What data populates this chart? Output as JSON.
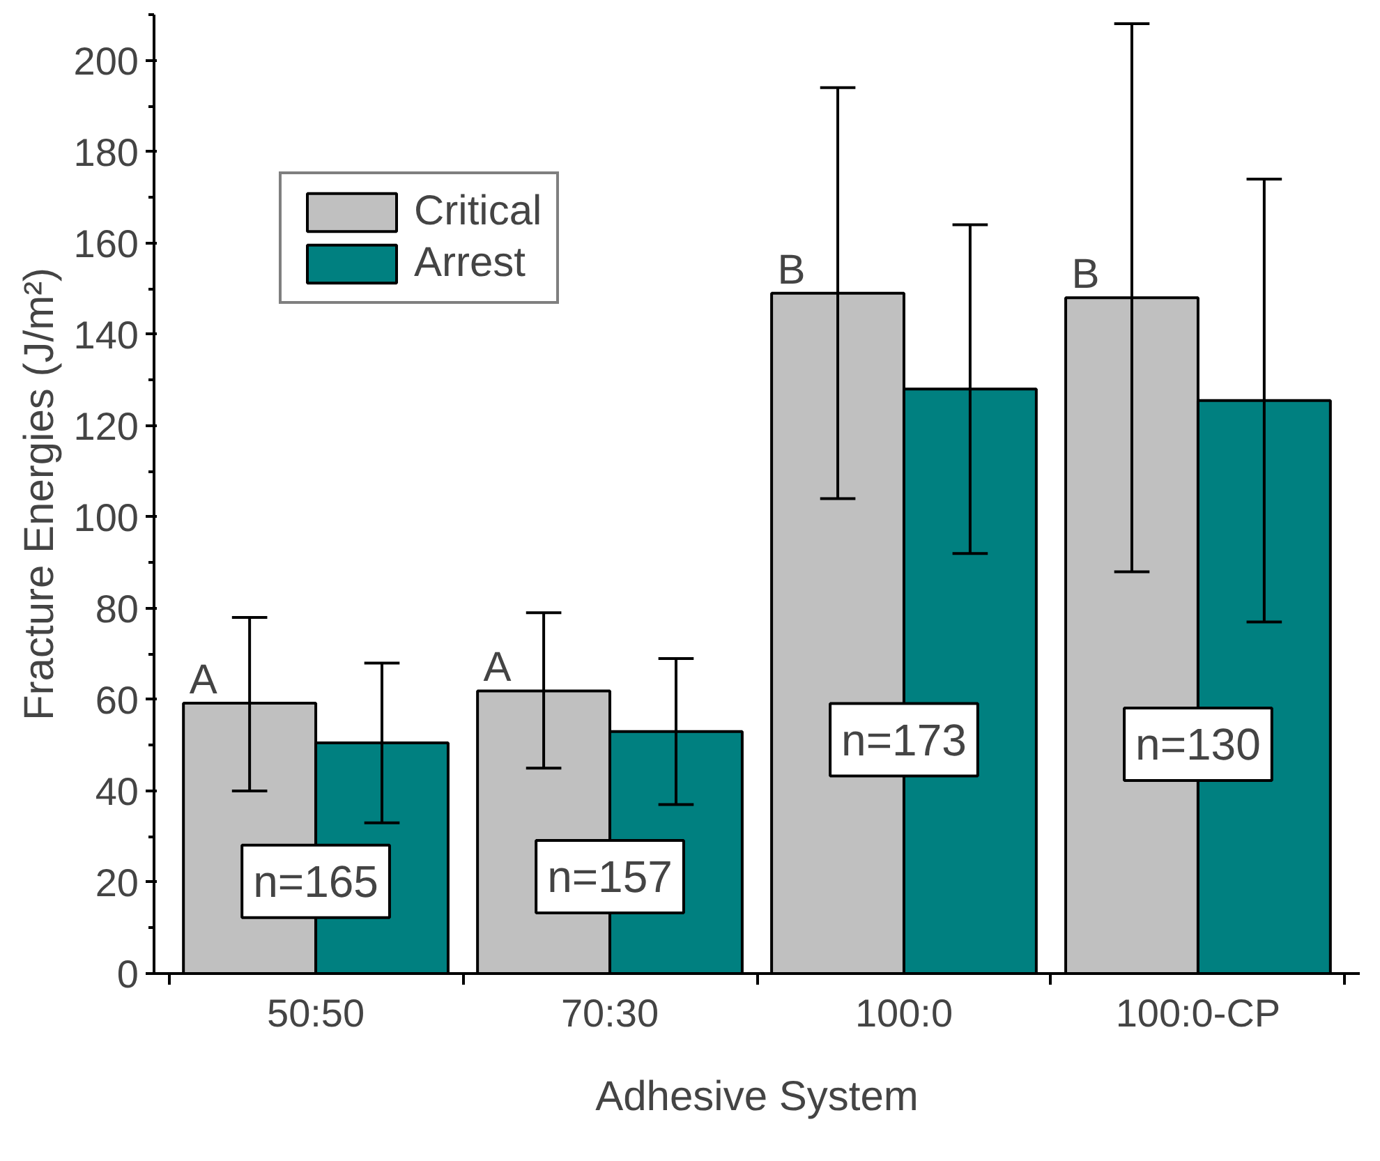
{
  "chart_data": {
    "type": "bar",
    "xlabel": "Adhesive System",
    "ylabel": "Fracture Energies (J/m²)",
    "categories": [
      "50:50",
      "70:30",
      "100:0",
      "100:0-CP"
    ],
    "series": [
      {
        "name": "Critical",
        "color": "#c0c0c0",
        "values": [
          59.2,
          61.9,
          149,
          148
        ],
        "errors": [
          [
            40,
            78
          ],
          [
            45,
            79
          ],
          [
            104,
            194
          ],
          [
            88,
            208
          ]
        ]
      },
      {
        "name": "Arrest",
        "color": "#008080",
        "values": [
          50.5,
          53,
          128,
          125.5
        ],
        "errors": [
          [
            33,
            68
          ],
          [
            37,
            69
          ],
          [
            92,
            164
          ],
          [
            77,
            174
          ]
        ]
      }
    ],
    "ylim": [
      0,
      210
    ],
    "yticks": [
      0,
      20,
      40,
      60,
      80,
      100,
      120,
      140,
      160,
      180,
      200
    ],
    "annotations": [
      {
        "text": "A",
        "x": "50:50",
        "y": 59.2
      },
      {
        "text": "A",
        "x": "70:30",
        "y": 61.9
      },
      {
        "text": "B",
        "x": "100:0",
        "y": 149
      },
      {
        "text": "B",
        "x": "100:0-CP",
        "y": 148
      },
      "n=165",
      "n=157",
      "n=173",
      "n=130"
    ],
    "legend": "top left",
    "grid": false
  }
}
